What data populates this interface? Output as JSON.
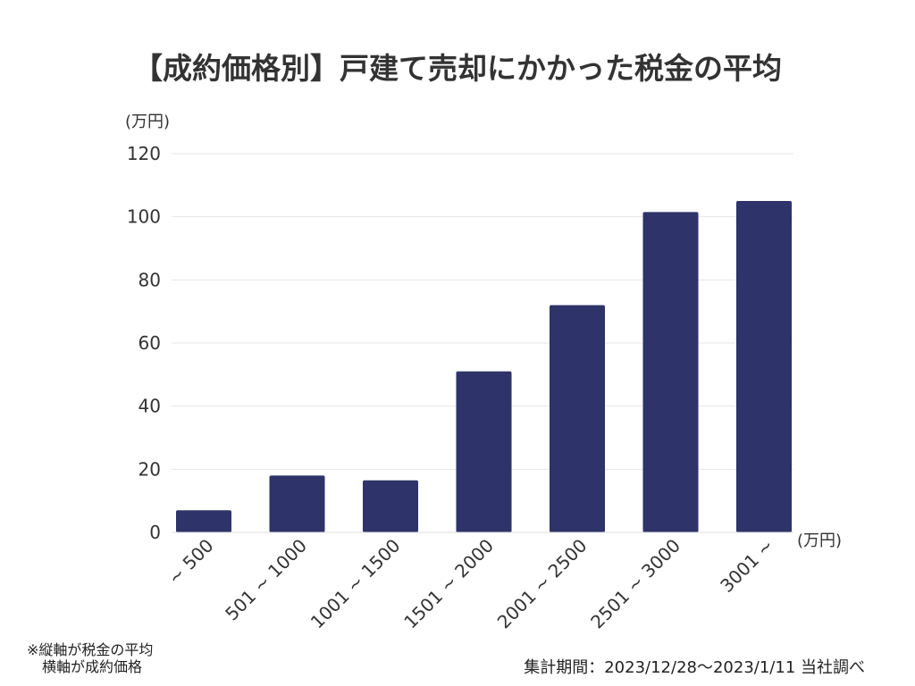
{
  "chart_data": {
    "type": "bar",
    "title": "【成約価格別】戸建て売却にかかった税金の平均",
    "ylabel": "(万円)",
    "xlabel": "(万円)",
    "ylim": [
      0,
      120
    ],
    "yticks": [
      0,
      20,
      40,
      60,
      80,
      100,
      120
    ],
    "grid": true,
    "categories": [
      "~ 500",
      "501 ~ 1000",
      "1001 ~ 1500",
      "1501 ~ 2000",
      "2001 ~ 2500",
      "2501 ~ 3000",
      "3001 ~"
    ],
    "values": [
      7,
      18,
      16.5,
      51,
      72,
      101.5,
      105
    ],
    "bar_color": "#2e3369"
  },
  "footnote": {
    "line1": "※縦軸が税金の平均",
    "line2": "横軸が成約価格"
  },
  "source": "集計期間：2023/12/28〜2023/1/11 当社調べ"
}
